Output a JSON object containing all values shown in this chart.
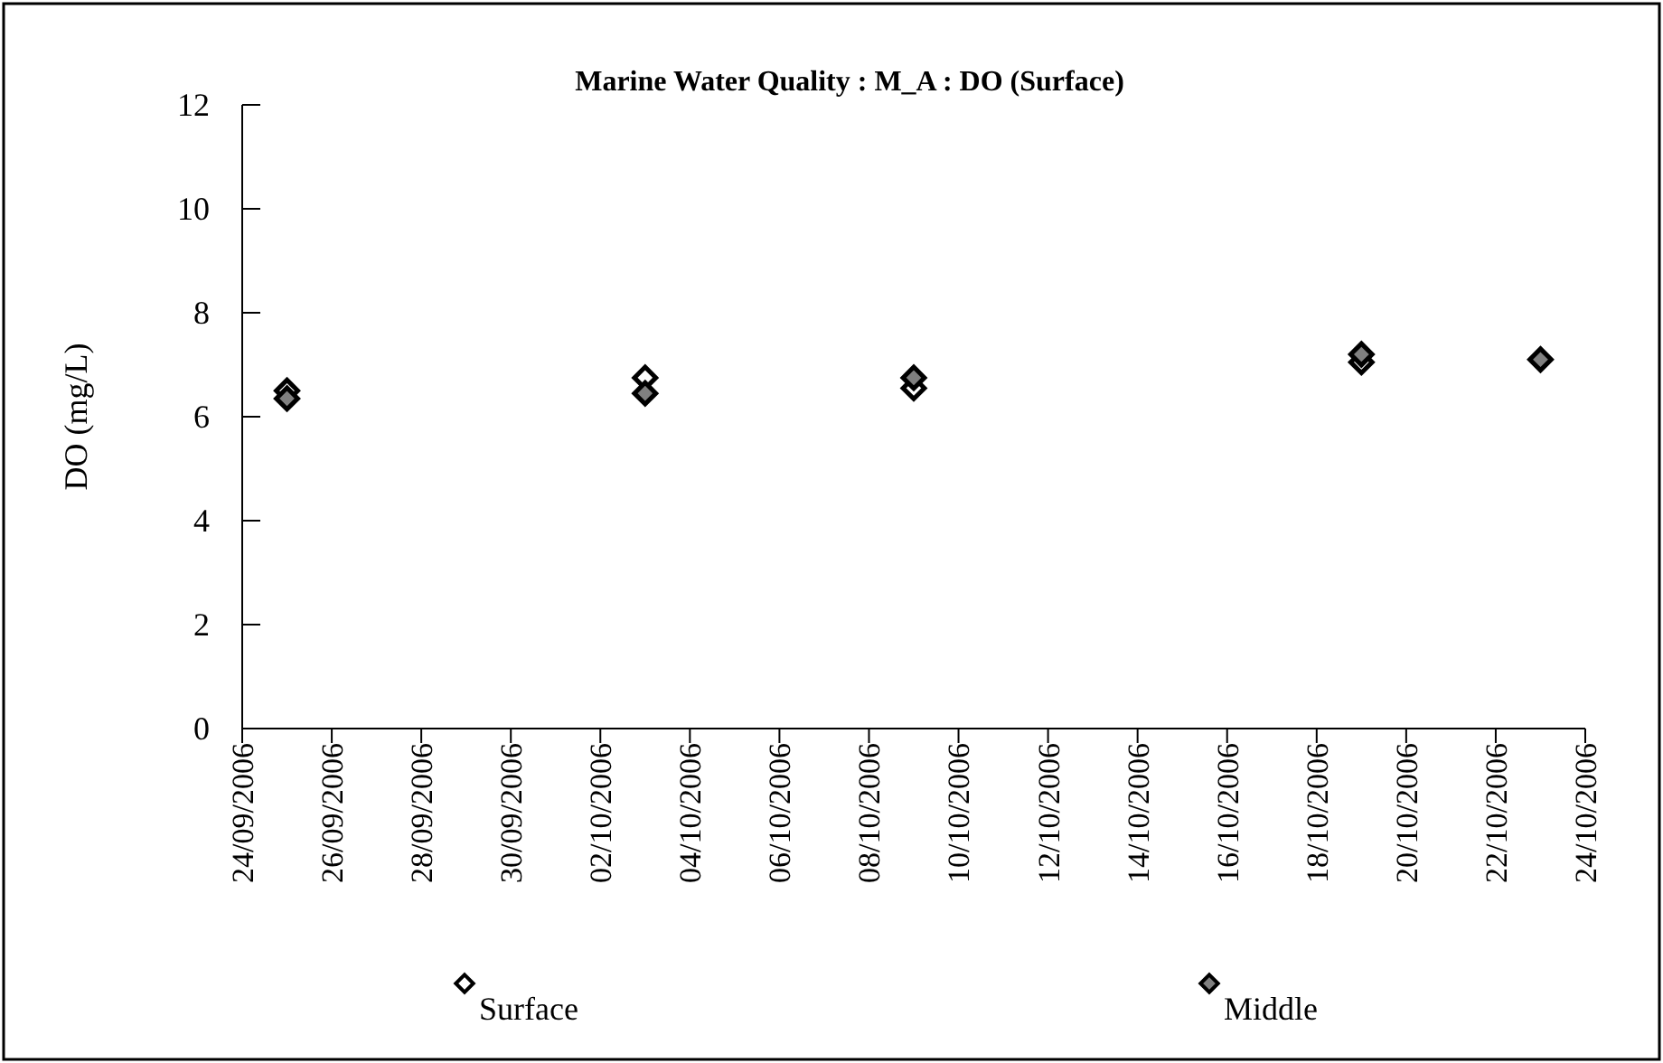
{
  "chart_data": {
    "type": "scatter",
    "title": "Marine Water Quality : M_A : DO (Surface)",
    "ylabel": "DO (mg/L)",
    "x": [
      "2006-09-25",
      "2006-10-03",
      "2006-10-09",
      "2006-10-19",
      "2006-10-23"
    ],
    "series": [
      {
        "name": "Surface",
        "color": "#ffffff",
        "values": [
          6.5,
          6.75,
          6.55,
          7.05,
          null
        ]
      },
      {
        "name": "Middle",
        "color": "#808080",
        "values": [
          6.35,
          6.45,
          6.75,
          7.2,
          7.1
        ]
      }
    ],
    "xlim": [
      "2006-09-24",
      "2006-10-24"
    ],
    "xticks": [
      {
        "value": "2006-09-24",
        "label": "24/09/2006"
      },
      {
        "value": "2006-09-26",
        "label": "26/09/2006"
      },
      {
        "value": "2006-09-28",
        "label": "28/09/2006"
      },
      {
        "value": "2006-09-30",
        "label": "30/09/2006"
      },
      {
        "value": "2006-10-02",
        "label": "02/10/2006"
      },
      {
        "value": "2006-10-04",
        "label": "04/10/2006"
      },
      {
        "value": "2006-10-06",
        "label": "06/10/2006"
      },
      {
        "value": "2006-10-08",
        "label": "08/10/2006"
      },
      {
        "value": "2006-10-10",
        "label": "10/10/2006"
      },
      {
        "value": "2006-10-12",
        "label": "12/10/2006"
      },
      {
        "value": "2006-10-14",
        "label": "14/10/2006"
      },
      {
        "value": "2006-10-16",
        "label": "16/10/2006"
      },
      {
        "value": "2006-10-18",
        "label": "18/10/2006"
      },
      {
        "value": "2006-10-20",
        "label": "20/10/2006"
      },
      {
        "value": "2006-10-22",
        "label": "22/10/2006"
      },
      {
        "value": "2006-10-24",
        "label": "24/10/2006"
      }
    ],
    "ylim": [
      0,
      12
    ],
    "yticks": [
      0,
      2,
      4,
      6,
      8,
      10,
      12
    ],
    "marker": "diamond",
    "grid": false,
    "legend": "bottom"
  }
}
